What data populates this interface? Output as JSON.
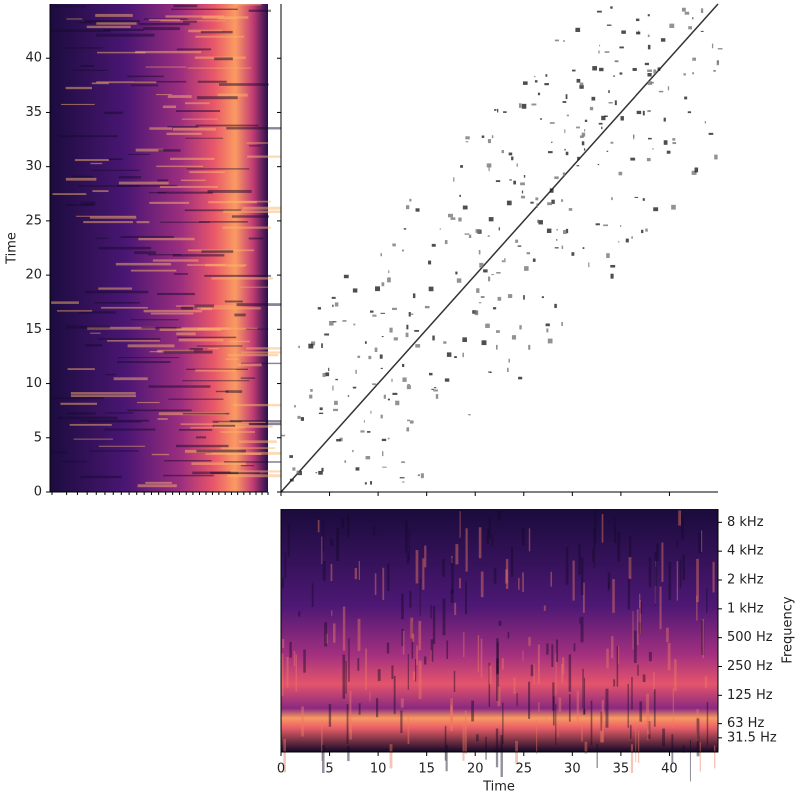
{
  "chart_data": [
    {
      "type": "spectrogram",
      "ylabel": "Time",
      "ylim": [
        0,
        45
      ],
      "yticks": [
        0,
        5,
        10,
        15,
        20,
        25,
        30,
        35,
        40
      ]
    },
    {
      "type": "recurrence"
    },
    {
      "type": "spectrogram",
      "xlabel": "Time",
      "ylabel": "Frequency",
      "xlim": [
        0,
        45
      ],
      "xticks": [
        0,
        5,
        10,
        15,
        20,
        25,
        30,
        35,
        40
      ],
      "ylim": [
        0,
        11025
      ],
      "yscale": "symlog",
      "yticks": [
        {
          "value": 31.5,
          "label": "31.5 Hz"
        },
        {
          "value": 63,
          "label": "63 Hz"
        },
        {
          "value": 125,
          "label": "125 Hz"
        },
        {
          "value": 250,
          "label": "250 Hz"
        },
        {
          "value": 500,
          "label": "500 Hz"
        },
        {
          "value": 1000,
          "label": "1 kHz"
        },
        {
          "value": 2000,
          "label": "2 kHz"
        },
        {
          "value": 4000,
          "label": "4 kHz"
        },
        {
          "value": 8000,
          "label": "8 kHz"
        }
      ]
    }
  ]
}
